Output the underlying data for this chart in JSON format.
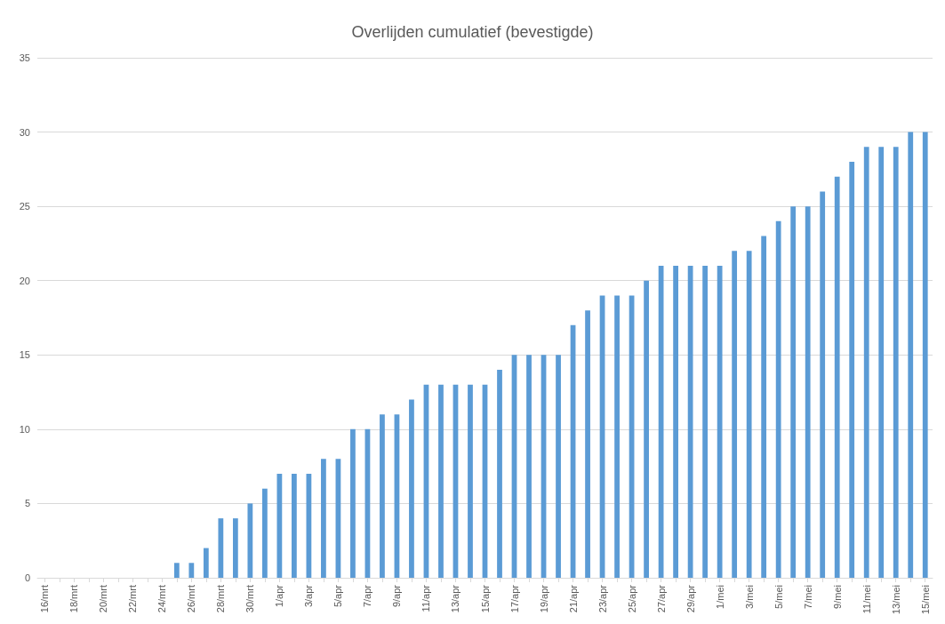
{
  "chart_data": {
    "type": "bar",
    "title": "Overlijden cumulatief (bevestigde)",
    "categories": [
      "16/mrt",
      null,
      "18/mrt",
      null,
      "20/mrt",
      null,
      "22/mrt",
      null,
      "24/mrt",
      null,
      "26/mrt",
      null,
      "28/mrt",
      null,
      "30/mrt",
      null,
      "1/apr",
      null,
      "3/apr",
      null,
      "5/apr",
      null,
      "7/apr",
      null,
      "9/apr",
      null,
      "11/apr",
      null,
      "13/apr",
      null,
      "15/apr",
      null,
      "17/apr",
      null,
      "19/apr",
      null,
      "21/apr",
      null,
      "23/apr",
      null,
      "25/apr",
      null,
      "27/apr",
      null,
      "29/apr",
      null,
      "1/mei",
      null,
      "3/mei",
      null,
      "5/mei",
      null,
      "7/mei",
      null,
      "9/mei",
      null,
      "11/mei",
      null,
      "13/mei",
      null,
      "15/mei"
    ],
    "values": [
      0,
      0,
      0,
      0,
      0,
      0,
      0,
      0,
      0,
      1,
      1,
      2,
      4,
      4,
      5,
      6,
      7,
      7,
      7,
      8,
      8,
      10,
      10,
      11,
      11,
      12,
      13,
      13,
      13,
      13,
      13,
      14,
      15,
      15,
      15,
      15,
      17,
      18,
      19,
      19,
      19,
      20,
      21,
      21,
      21,
      21,
      21,
      22,
      22,
      23,
      24,
      25,
      25,
      26,
      27,
      28,
      29,
      29,
      29,
      30,
      30
    ],
    "color": "#5b9bd5",
    "ylim": [
      0,
      35
    ],
    "yticks": [
      0,
      5,
      10,
      15,
      20,
      25,
      30,
      35
    ],
    "grid": "y"
  }
}
